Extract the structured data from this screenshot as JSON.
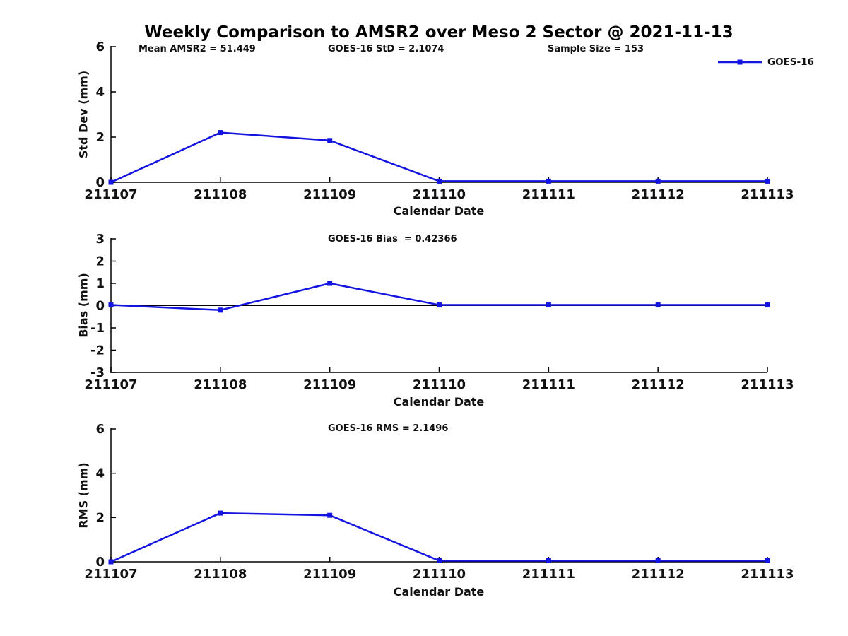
{
  "figure_title": "Weekly Comparison to AMSR2 over Meso 2 Sector @ 2021-11-13",
  "legend": {
    "label": "GOES-16",
    "position": "top-right"
  },
  "colors": {
    "line": "#1414e0",
    "axis": "#000000",
    "text": "#111111"
  },
  "chart_data": [
    {
      "type": "line",
      "ylabel": "Std Dev (mm)",
      "xlabel": "Calendar Date",
      "categories": [
        "211107",
        "211108",
        "211109",
        "211110",
        "211111",
        "211112",
        "211113"
      ],
      "series": [
        {
          "name": "GOES-16",
          "values": [
            0,
            2.2,
            1.85,
            0.05,
            0.05,
            0.05,
            0.05
          ]
        }
      ],
      "ylim": [
        0,
        6
      ],
      "yticks": [
        0,
        2,
        4,
        6
      ],
      "grid": false,
      "zero_line": false,
      "annotations": [
        "Mean AMSR2 = 51.449",
        "GOES-16 StD = 2.1074",
        "Sample Size = 153"
      ],
      "stats": {
        "mean_amsr2": 51.449,
        "goes16_std": 2.1074,
        "sample_size": 153
      }
    },
    {
      "type": "line",
      "ylabel": "Bias (mm)",
      "xlabel": "Calendar Date",
      "categories": [
        "211107",
        "211108",
        "211109",
        "211110",
        "211111",
        "211112",
        "211113"
      ],
      "series": [
        {
          "name": "GOES-16",
          "values": [
            0.03,
            -0.2,
            1.0,
            0.03,
            0.03,
            0.03,
            0.03
          ]
        }
      ],
      "ylim": [
        -3,
        3
      ],
      "yticks": [
        -3,
        -2,
        -1,
        0,
        1,
        2,
        3
      ],
      "grid": false,
      "zero_line": true,
      "annotations": [
        "GOES-16 Bias  = 0.42366"
      ],
      "stats": {
        "goes16_bias": 0.42366
      }
    },
    {
      "type": "line",
      "ylabel": "RMS (mm)",
      "xlabel": "Calendar Date",
      "categories": [
        "211107",
        "211108",
        "211109",
        "211110",
        "211111",
        "211112",
        "211113"
      ],
      "series": [
        {
          "name": "GOES-16",
          "values": [
            0,
            2.2,
            2.1,
            0.05,
            0.05,
            0.05,
            0.05
          ]
        }
      ],
      "ylim": [
        0,
        6
      ],
      "yticks": [
        0,
        2,
        4,
        6
      ],
      "grid": false,
      "zero_line": false,
      "annotations": [
        "GOES-16 RMS = 2.1496"
      ],
      "stats": {
        "goes16_rms": 2.1496
      }
    }
  ]
}
